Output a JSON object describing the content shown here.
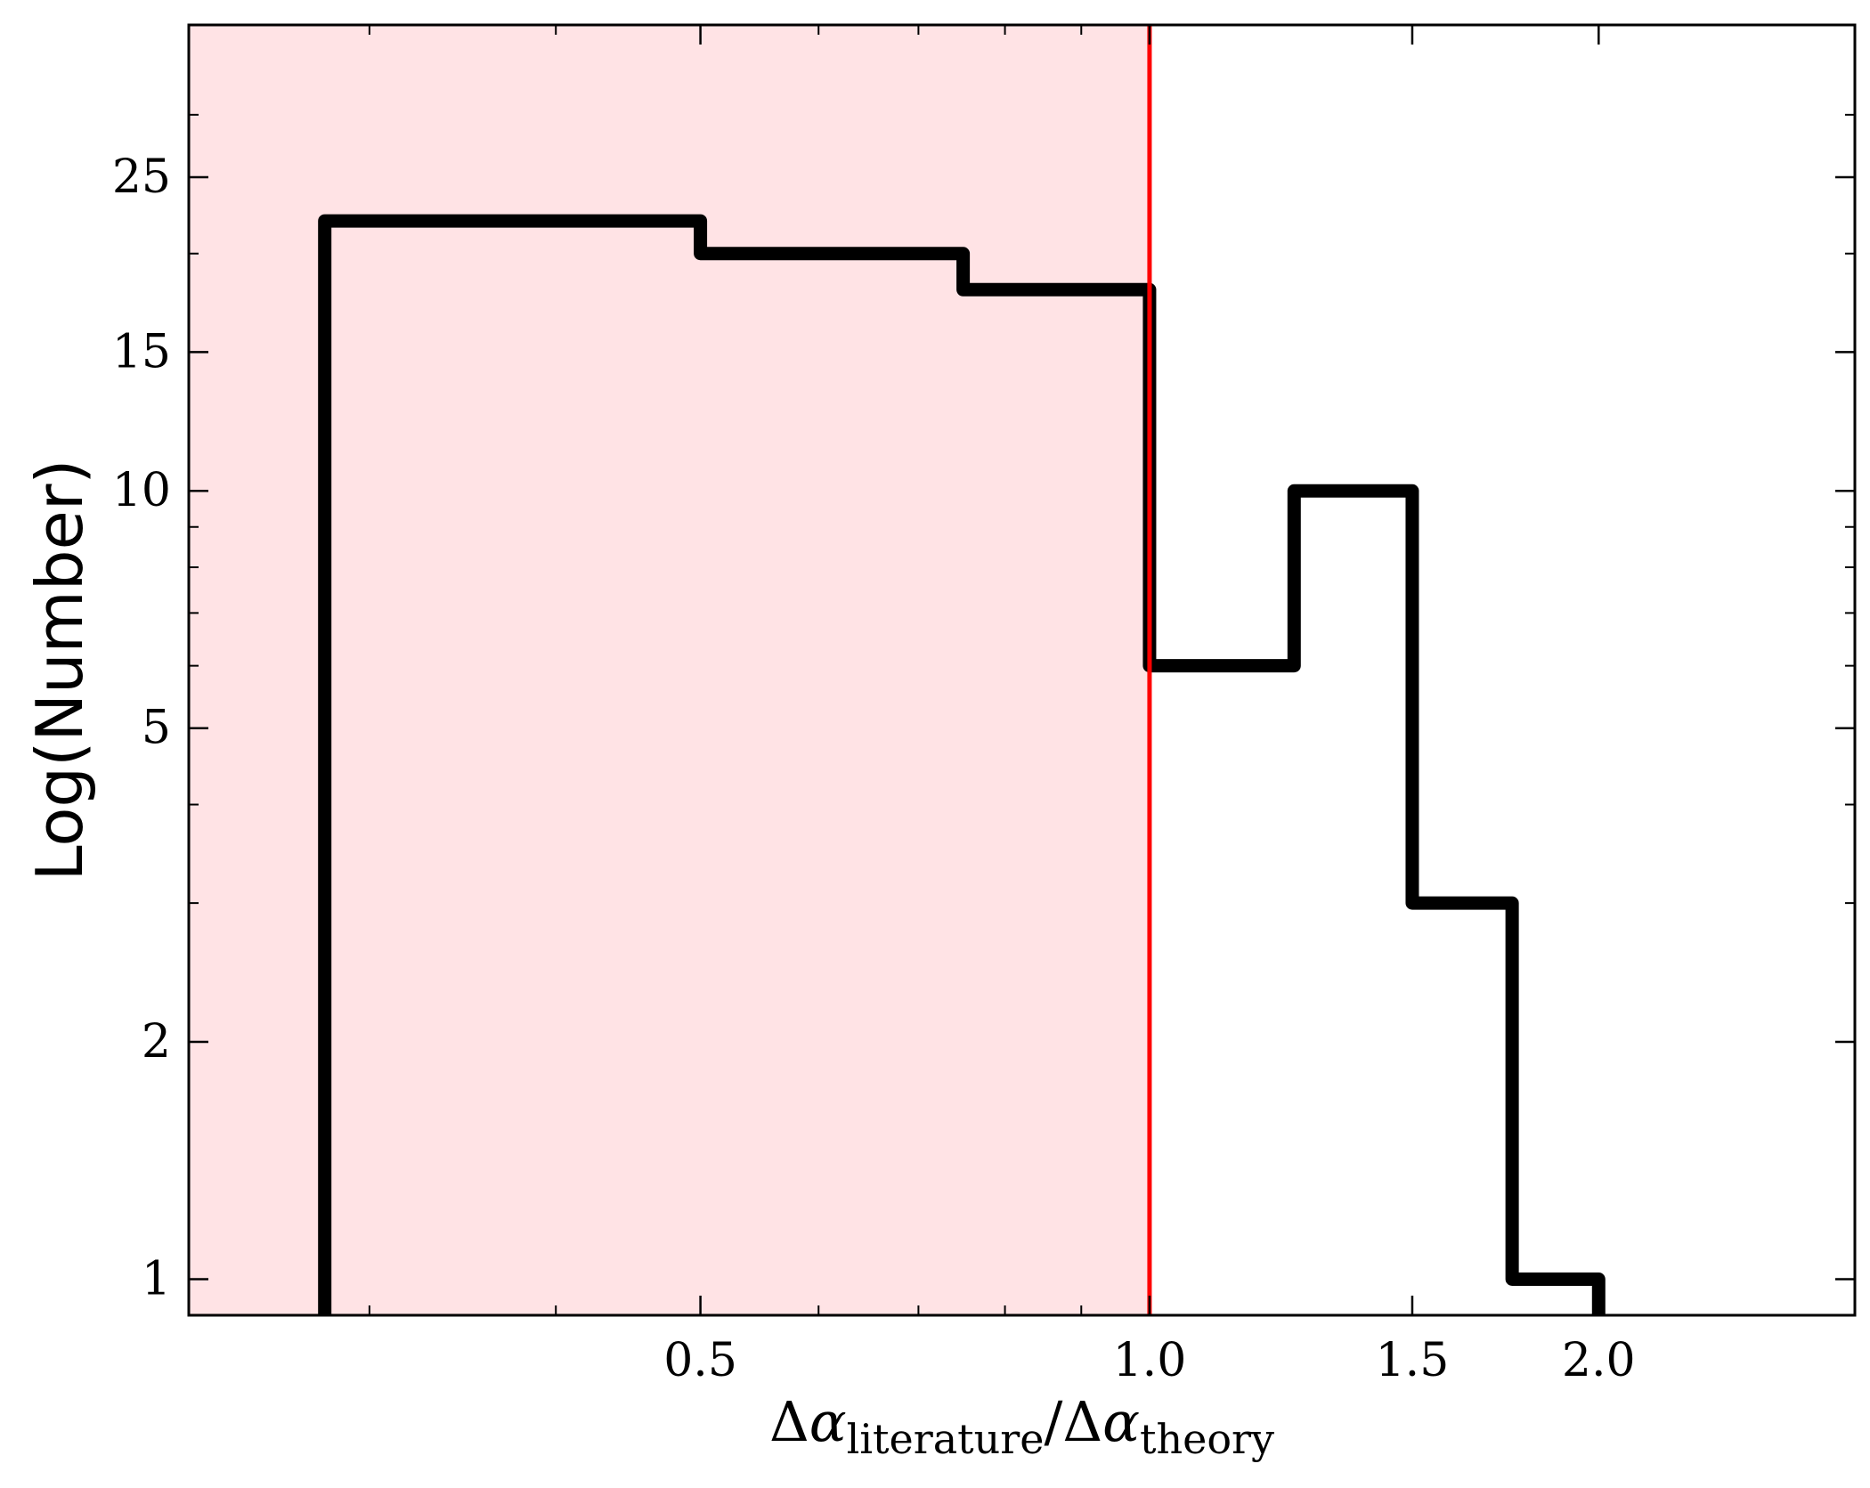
{
  "chart_data": {
    "type": "histogram",
    "xscale": "log",
    "yscale": "log",
    "xlim": [
      0.227,
      2.97
    ],
    "ylim": [
      0.9,
      39
    ],
    "xticks": [
      {
        "value": 0.5,
        "label": "0.5"
      },
      {
        "value": 1.0,
        "label": "1.0"
      },
      {
        "value": 1.5,
        "label": "1.5"
      },
      {
        "value": 2.0,
        "label": "2.0"
      }
    ],
    "yticks": [
      {
        "value": 1,
        "label": "1"
      },
      {
        "value": 2,
        "label": "2"
      },
      {
        "value": 5,
        "label": "5"
      },
      {
        "value": 10,
        "label": "10"
      },
      {
        "value": 15,
        "label": "15"
      },
      {
        "value": 25,
        "label": "25"
      }
    ],
    "ylabel": "Log(Number)",
    "xlabel": {
      "delta": "Δ",
      "alpha": "α",
      "sub1": "literature",
      "slash": "/",
      "sub2": "theory"
    },
    "bins": [
      {
        "x0": 0.28,
        "x1": 0.5,
        "count": 22
      },
      {
        "x0": 0.5,
        "x1": 0.75,
        "count": 20
      },
      {
        "x0": 0.75,
        "x1": 1.0,
        "count": 18
      },
      {
        "x0": 1.0,
        "x1": 1.25,
        "count": 6
      },
      {
        "x0": 1.25,
        "x1": 1.5,
        "count": 10
      },
      {
        "x0": 1.5,
        "x1": 1.75,
        "count": 3
      },
      {
        "x0": 1.75,
        "x1": 2.0,
        "count": 1
      }
    ],
    "threshold_x": 1.0,
    "shaded_region_x": [
      0.227,
      1.0
    ],
    "colors": {
      "shade": "#ffe3e5",
      "threshold_line": "#ff0000",
      "histogram": "#000000",
      "frame": "#000000"
    },
    "grid": false,
    "legend": "none"
  }
}
